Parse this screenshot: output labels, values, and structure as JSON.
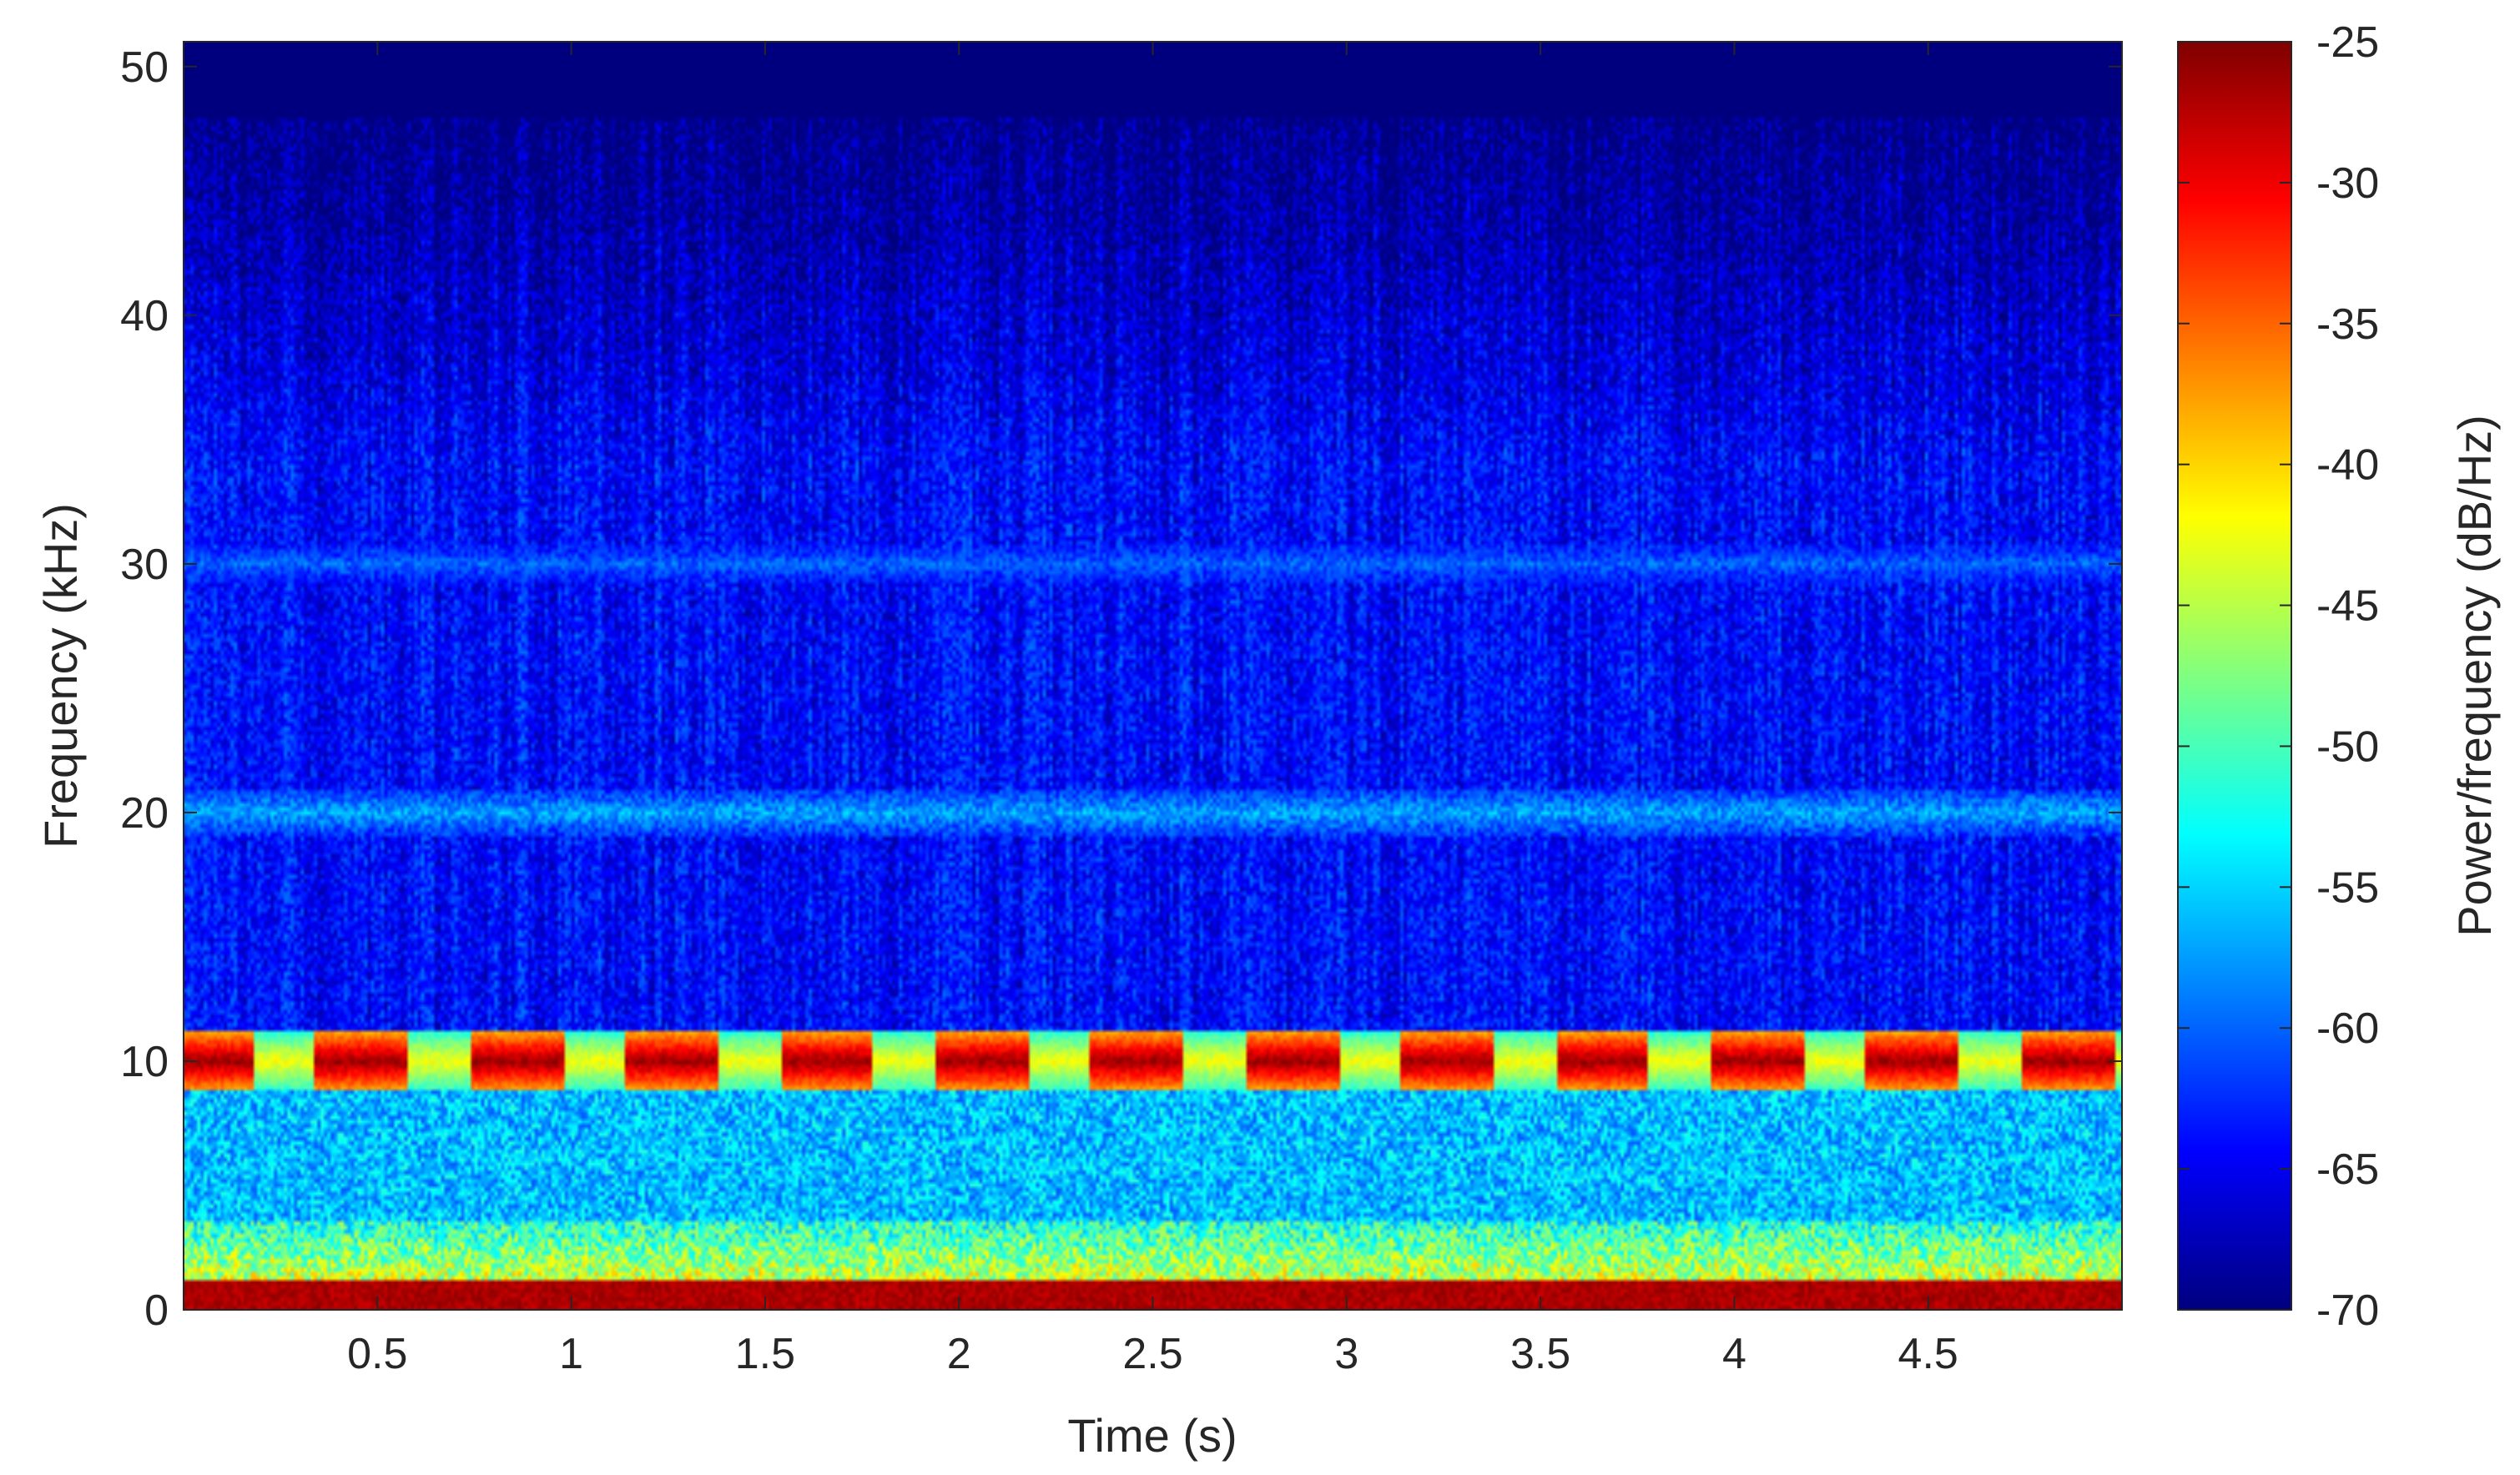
{
  "chart_data": {
    "type": "heatmap",
    "subtype": "spectrogram",
    "title": "",
    "xlabel": "Time (s)",
    "ylabel": "Frequency (kHz)",
    "colorbar_label": "Power/frequency (dB/Hz)",
    "xlim": [
      0,
      5
    ],
    "ylim": [
      0,
      51
    ],
    "x_ticks": [
      0.5,
      1,
      1.5,
      2,
      2.5,
      3,
      3.5,
      4,
      4.5
    ],
    "x_tick_labels": [
      "0.5",
      "1",
      "1.5",
      "2",
      "2.5",
      "3",
      "3.5",
      "4",
      "4.5"
    ],
    "y_ticks": [
      0,
      10,
      20,
      30,
      40,
      50
    ],
    "y_tick_labels": [
      "0",
      "10",
      "20",
      "30",
      "40",
      "50"
    ],
    "clim": [
      -70,
      -25
    ],
    "colorbar_ticks": [
      -25,
      -30,
      -35,
      -40,
      -45,
      -50,
      -55,
      -60,
      -65,
      -70
    ],
    "colorbar_tick_labels": [
      "-25",
      "-30",
      "-35",
      "-40",
      "-45",
      "-50",
      "-55",
      "-60",
      "-65",
      "-70"
    ],
    "colormap": "jet",
    "colormap_stops": [
      "#00007f",
      "#0000ff",
      "#0080ff",
      "#00ffff",
      "#80ff80",
      "#ffff00",
      "#ff8000",
      "#ff0000",
      "#7f0000"
    ],
    "grid": false,
    "features": {
      "low_band": {
        "freq_khz": [
          0,
          1.2
        ],
        "level_db": -27
      },
      "low_spread": {
        "freq_khz": [
          1.2,
          3.5
        ],
        "level_db": -45
      },
      "mid_noise": {
        "freq_khz": [
          3.5,
          11
        ],
        "level_db": -56
      },
      "carrier": {
        "freq_khz": 10,
        "level_db": -26,
        "pulse_period_s": 0.4,
        "pulse_on_fraction": 0.6
      },
      "harmonic_20k": {
        "freq_khz": 20,
        "level_db": -57
      },
      "harmonic_30k": {
        "freq_khz": 30,
        "level_db": -60
      },
      "background_db_low": -64,
      "background_db_high": -70,
      "rolloff_freq_khz": [
        34,
        48
      ]
    }
  }
}
